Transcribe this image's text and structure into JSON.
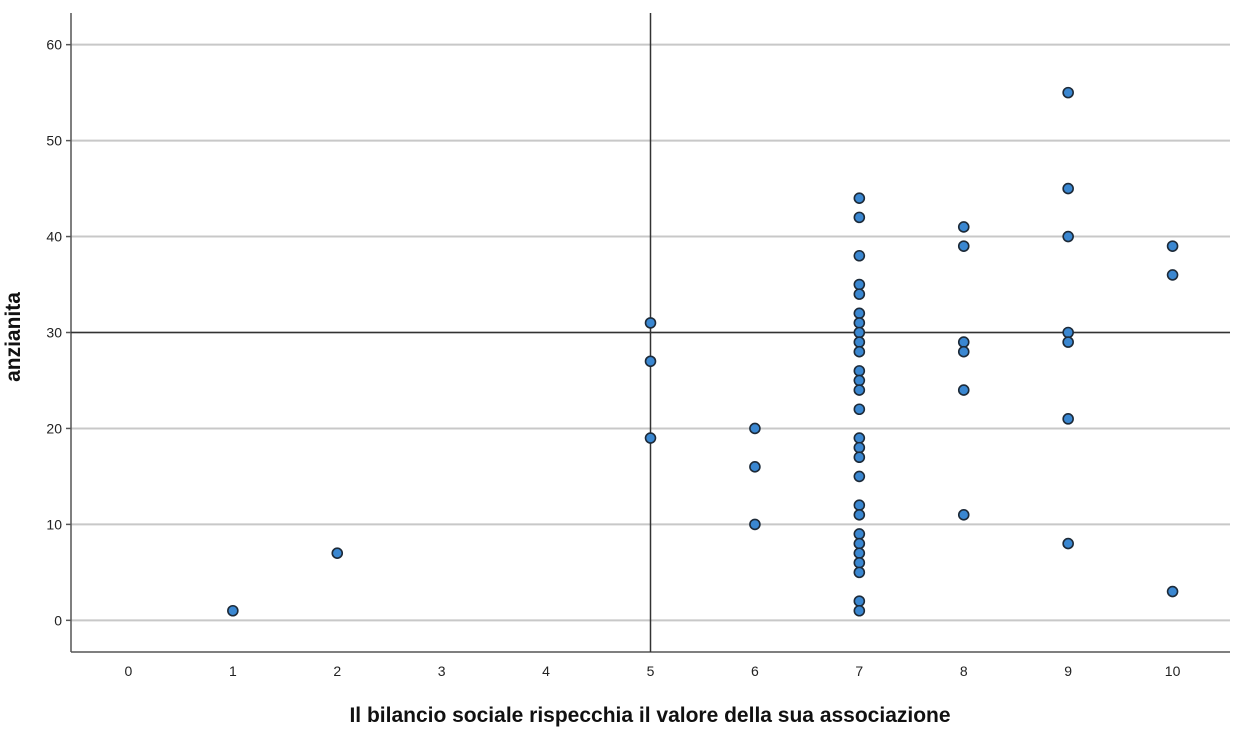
{
  "chart_data": {
    "type": "scatter",
    "title": "",
    "xlabel": "Il bilancio sociale rispecchia il valore della sua associazione",
    "ylabel": "anzianita",
    "xlim": [
      -0.55,
      10.55
    ],
    "ylim": [
      -3.3,
      63.3
    ],
    "x_ticks": [
      0,
      1,
      2,
      3,
      4,
      5,
      6,
      7,
      8,
      9,
      10
    ],
    "y_ticks": [
      0,
      10,
      20,
      30,
      40,
      50,
      60
    ],
    "grid": "horizontal",
    "reference_lines": {
      "x": 5,
      "y": 30
    },
    "marker_color": "#3a87d1",
    "marker_edge_color": "#1d2a38",
    "points": [
      {
        "x": 1,
        "y": 1
      },
      {
        "x": 2,
        "y": 7
      },
      {
        "x": 5,
        "y": 31
      },
      {
        "x": 5,
        "y": 27
      },
      {
        "x": 5,
        "y": 19
      },
      {
        "x": 6,
        "y": 20
      },
      {
        "x": 6,
        "y": 16
      },
      {
        "x": 6,
        "y": 10
      },
      {
        "x": 7,
        "y": 44
      },
      {
        "x": 7,
        "y": 42
      },
      {
        "x": 7,
        "y": 38
      },
      {
        "x": 7,
        "y": 35
      },
      {
        "x": 7,
        "y": 34
      },
      {
        "x": 7,
        "y": 32
      },
      {
        "x": 7,
        "y": 31
      },
      {
        "x": 7,
        "y": 30
      },
      {
        "x": 7,
        "y": 29
      },
      {
        "x": 7,
        "y": 28
      },
      {
        "x": 7,
        "y": 26
      },
      {
        "x": 7,
        "y": 25
      },
      {
        "x": 7,
        "y": 24
      },
      {
        "x": 7,
        "y": 22
      },
      {
        "x": 7,
        "y": 19
      },
      {
        "x": 7,
        "y": 18
      },
      {
        "x": 7,
        "y": 17
      },
      {
        "x": 7,
        "y": 15
      },
      {
        "x": 7,
        "y": 12
      },
      {
        "x": 7,
        "y": 11
      },
      {
        "x": 7,
        "y": 9
      },
      {
        "x": 7,
        "y": 8
      },
      {
        "x": 7,
        "y": 7
      },
      {
        "x": 7,
        "y": 6
      },
      {
        "x": 7,
        "y": 5
      },
      {
        "x": 7,
        "y": 2
      },
      {
        "x": 7,
        "y": 1
      },
      {
        "x": 8,
        "y": 41
      },
      {
        "x": 8,
        "y": 39
      },
      {
        "x": 8,
        "y": 29
      },
      {
        "x": 8,
        "y": 28
      },
      {
        "x": 8,
        "y": 24
      },
      {
        "x": 8,
        "y": 11
      },
      {
        "x": 9,
        "y": 55
      },
      {
        "x": 9,
        "y": 45
      },
      {
        "x": 9,
        "y": 40
      },
      {
        "x": 9,
        "y": 30
      },
      {
        "x": 9,
        "y": 29
      },
      {
        "x": 9,
        "y": 21
      },
      {
        "x": 9,
        "y": 8
      },
      {
        "x": 10,
        "y": 39
      },
      {
        "x": 10,
        "y": 36
      },
      {
        "x": 10,
        "y": 3
      }
    ]
  }
}
